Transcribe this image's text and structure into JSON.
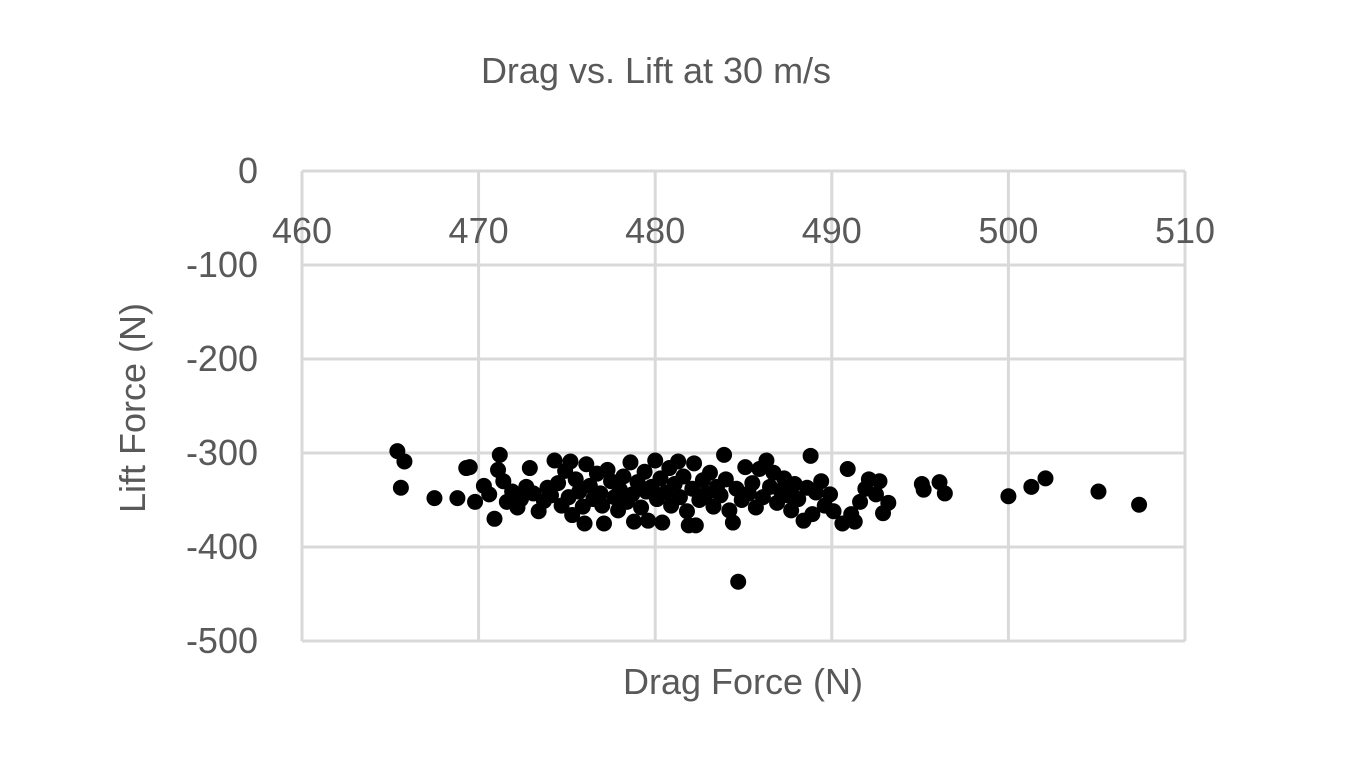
{
  "chart_data": {
    "type": "scatter",
    "title": "Drag vs. Lift at 30 m/s",
    "xlabel": "Drag Force (N)",
    "ylabel": "Lift Force (N)",
    "xlim": [
      460,
      510
    ],
    "ylim": [
      -500,
      0
    ],
    "x_ticks": [
      "460",
      "470",
      "480",
      "490",
      "500",
      "510"
    ],
    "y_ticks": [
      "0",
      "-100",
      "-200",
      "-300",
      "-400",
      "-500"
    ],
    "grid": true,
    "legend": "none",
    "marker_color": "#000000",
    "series": [
      {
        "points": [
          [
            465.4,
            -298
          ],
          [
            465.8,
            -309
          ],
          [
            465.6,
            -337
          ],
          [
            467.5,
            -348
          ],
          [
            468.8,
            -348
          ],
          [
            469.3,
            -316
          ],
          [
            469.5,
            -315
          ],
          [
            469.8,
            -352
          ],
          [
            470.3,
            -335
          ],
          [
            470.6,
            -344
          ],
          [
            470.9,
            -370
          ],
          [
            471.1,
            -318
          ],
          [
            471.2,
            -302
          ],
          [
            471.4,
            -330
          ],
          [
            471.6,
            -352
          ],
          [
            471.9,
            -341
          ],
          [
            472.2,
            -358
          ],
          [
            472.4,
            -349
          ],
          [
            472.7,
            -336
          ],
          [
            472.9,
            -316
          ],
          [
            473.1,
            -343
          ],
          [
            473.4,
            -362
          ],
          [
            473.7,
            -351
          ],
          [
            473.9,
            -337
          ],
          [
            474.1,
            -345
          ],
          [
            474.3,
            -308
          ],
          [
            474.5,
            -332
          ],
          [
            474.7,
            -356
          ],
          [
            474.9,
            -319
          ],
          [
            475.1,
            -347
          ],
          [
            475.2,
            -309
          ],
          [
            475.3,
            -366
          ],
          [
            475.5,
            -328
          ],
          [
            475.7,
            -341
          ],
          [
            475.9,
            -357
          ],
          [
            476.0,
            -375
          ],
          [
            476.1,
            -312
          ],
          [
            476.3,
            -335
          ],
          [
            476.5,
            -349
          ],
          [
            476.7,
            -322
          ],
          [
            476.9,
            -343
          ],
          [
            477.0,
            -356
          ],
          [
            477.1,
            -375
          ],
          [
            477.3,
            -318
          ],
          [
            477.5,
            -330
          ],
          [
            477.7,
            -347
          ],
          [
            477.9,
            -361
          ],
          [
            478.0,
            -339
          ],
          [
            478.2,
            -325
          ],
          [
            478.4,
            -352
          ],
          [
            478.6,
            -310
          ],
          [
            478.7,
            -344
          ],
          [
            478.8,
            -373
          ],
          [
            479.0,
            -331
          ],
          [
            479.2,
            -358
          ],
          [
            479.4,
            -320
          ],
          [
            479.5,
            -341
          ],
          [
            479.6,
            -372
          ],
          [
            479.8,
            -336
          ],
          [
            480.0,
            -308
          ],
          [
            480.1,
            -349
          ],
          [
            480.3,
            -327
          ],
          [
            480.4,
            -374
          ],
          [
            480.6,
            -342
          ],
          [
            480.8,
            -316
          ],
          [
            480.9,
            -356
          ],
          [
            481.1,
            -333
          ],
          [
            481.3,
            -309
          ],
          [
            481.4,
            -347
          ],
          [
            481.6,
            -325
          ],
          [
            481.8,
            -362
          ],
          [
            481.9,
            -377
          ],
          [
            482.1,
            -338
          ],
          [
            482.2,
            -311
          ],
          [
            482.3,
            -377
          ],
          [
            482.5,
            -350
          ],
          [
            482.7,
            -329
          ],
          [
            482.9,
            -343
          ],
          [
            483.1,
            -321
          ],
          [
            483.3,
            -357
          ],
          [
            483.5,
            -336
          ],
          [
            483.7,
            -345
          ],
          [
            483.9,
            -302
          ],
          [
            484.0,
            -328
          ],
          [
            484.2,
            -361
          ],
          [
            484.4,
            -374
          ],
          [
            484.6,
            -338
          ],
          [
            484.7,
            -437
          ],
          [
            484.9,
            -350
          ],
          [
            485.1,
            -315
          ],
          [
            485.3,
            -343
          ],
          [
            485.5,
            -332
          ],
          [
            485.7,
            -358
          ],
          [
            485.9,
            -317
          ],
          [
            486.1,
            -347
          ],
          [
            486.3,
            -308
          ],
          [
            486.5,
            -336
          ],
          [
            486.7,
            -321
          ],
          [
            486.9,
            -353
          ],
          [
            487.1,
            -340
          ],
          [
            487.3,
            -327
          ],
          [
            487.5,
            -345
          ],
          [
            487.7,
            -361
          ],
          [
            487.9,
            -333
          ],
          [
            488.1,
            -349
          ],
          [
            488.4,
            -372
          ],
          [
            488.6,
            -337
          ],
          [
            488.8,
            -303
          ],
          [
            488.9,
            -365
          ],
          [
            489.1,
            -342
          ],
          [
            489.4,
            -330
          ],
          [
            489.6,
            -356
          ],
          [
            489.9,
            -344
          ],
          [
            490.1,
            -362
          ],
          [
            490.6,
            -375
          ],
          [
            490.9,
            -317
          ],
          [
            491.1,
            -365
          ],
          [
            491.3,
            -373
          ],
          [
            491.6,
            -352
          ],
          [
            491.9,
            -338
          ],
          [
            492.1,
            -328
          ],
          [
            492.5,
            -344
          ],
          [
            492.7,
            -330
          ],
          [
            492.9,
            -364
          ],
          [
            493.2,
            -353
          ],
          [
            495.1,
            -333
          ],
          [
            495.2,
            -339
          ],
          [
            496.1,
            -331
          ],
          [
            496.4,
            -343
          ],
          [
            500.0,
            -346
          ],
          [
            501.3,
            -336
          ],
          [
            502.1,
            -327
          ],
          [
            505.1,
            -341
          ],
          [
            507.4,
            -355
          ]
        ]
      }
    ]
  }
}
